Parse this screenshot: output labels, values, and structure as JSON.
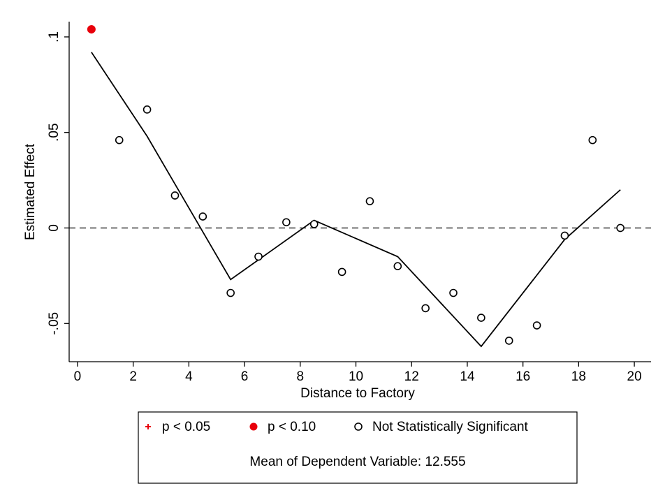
{
  "chart_data": {
    "type": "scatter",
    "title": "",
    "xlabel": "Distance to Factory",
    "ylabel": "Estimated Effect",
    "xlim": [
      -0.3,
      20.6
    ],
    "ylim": [
      -0.07,
      0.108
    ],
    "x_ticks": [
      0,
      2,
      4,
      6,
      8,
      10,
      12,
      14,
      16,
      18,
      20
    ],
    "x_tick_labels": [
      "0",
      "2",
      "4",
      "6",
      "8",
      "10",
      "12",
      "14",
      "16",
      "18",
      "20"
    ],
    "y_ticks": [
      -0.05,
      0,
      0.05,
      0.1
    ],
    "y_tick_labels": [
      "-.05",
      "0",
      ".05",
      ".1"
    ],
    "reference_line": {
      "y": 0,
      "style": "dashed"
    },
    "points": [
      {
        "x": 0.5,
        "y": 0.104,
        "group": "p < 0.10"
      },
      {
        "x": 1.5,
        "y": 0.046,
        "group": "Not Statistically Significant"
      },
      {
        "x": 2.5,
        "y": 0.062,
        "group": "Not Statistically Significant"
      },
      {
        "x": 3.5,
        "y": 0.017,
        "group": "Not Statistically Significant"
      },
      {
        "x": 4.5,
        "y": 0.006,
        "group": "Not Statistically Significant"
      },
      {
        "x": 5.5,
        "y": -0.034,
        "group": "Not Statistically Significant"
      },
      {
        "x": 6.5,
        "y": -0.015,
        "group": "Not Statistically Significant"
      },
      {
        "x": 7.5,
        "y": 0.003,
        "group": "Not Statistically Significant"
      },
      {
        "x": 8.5,
        "y": 0.002,
        "group": "Not Statistically Significant"
      },
      {
        "x": 9.5,
        "y": -0.023,
        "group": "Not Statistically Significant"
      },
      {
        "x": 10.5,
        "y": 0.014,
        "group": "Not Statistically Significant"
      },
      {
        "x": 11.5,
        "y": -0.02,
        "group": "Not Statistically Significant"
      },
      {
        "x": 12.5,
        "y": -0.042,
        "group": "Not Statistically Significant"
      },
      {
        "x": 13.5,
        "y": -0.034,
        "group": "Not Statistically Significant"
      },
      {
        "x": 14.5,
        "y": -0.047,
        "group": "Not Statistically Significant"
      },
      {
        "x": 15.5,
        "y": -0.059,
        "group": "Not Statistically Significant"
      },
      {
        "x": 16.5,
        "y": -0.051,
        "group": "Not Statistically Significant"
      },
      {
        "x": 17.5,
        "y": -0.004,
        "group": "Not Statistically Significant"
      },
      {
        "x": 18.5,
        "y": 0.046,
        "group": "Not Statistically Significant"
      },
      {
        "x": 19.5,
        "y": 0.0,
        "group": "Not Statistically Significant"
      }
    ],
    "fit_line": {
      "x": [
        0.5,
        2.5,
        5.5,
        8.5,
        11.5,
        14.5,
        17.5,
        19.5
      ],
      "y": [
        0.092,
        0.048,
        -0.027,
        0.004,
        -0.015,
        -0.062,
        -0.006,
        0.02
      ]
    },
    "legend": {
      "placement": "bottom",
      "entries": [
        {
          "label": "p < 0.05",
          "marker": "plus",
          "color": "#e8000b"
        },
        {
          "label": "p < 0.10",
          "marker": "filled-circle",
          "color": "#e8000b"
        },
        {
          "label": "Not Statistically Significant",
          "marker": "hollow-circle",
          "color": "#000000"
        }
      ],
      "note": "Mean of Dependent Variable: 12.555"
    },
    "grid": false
  }
}
